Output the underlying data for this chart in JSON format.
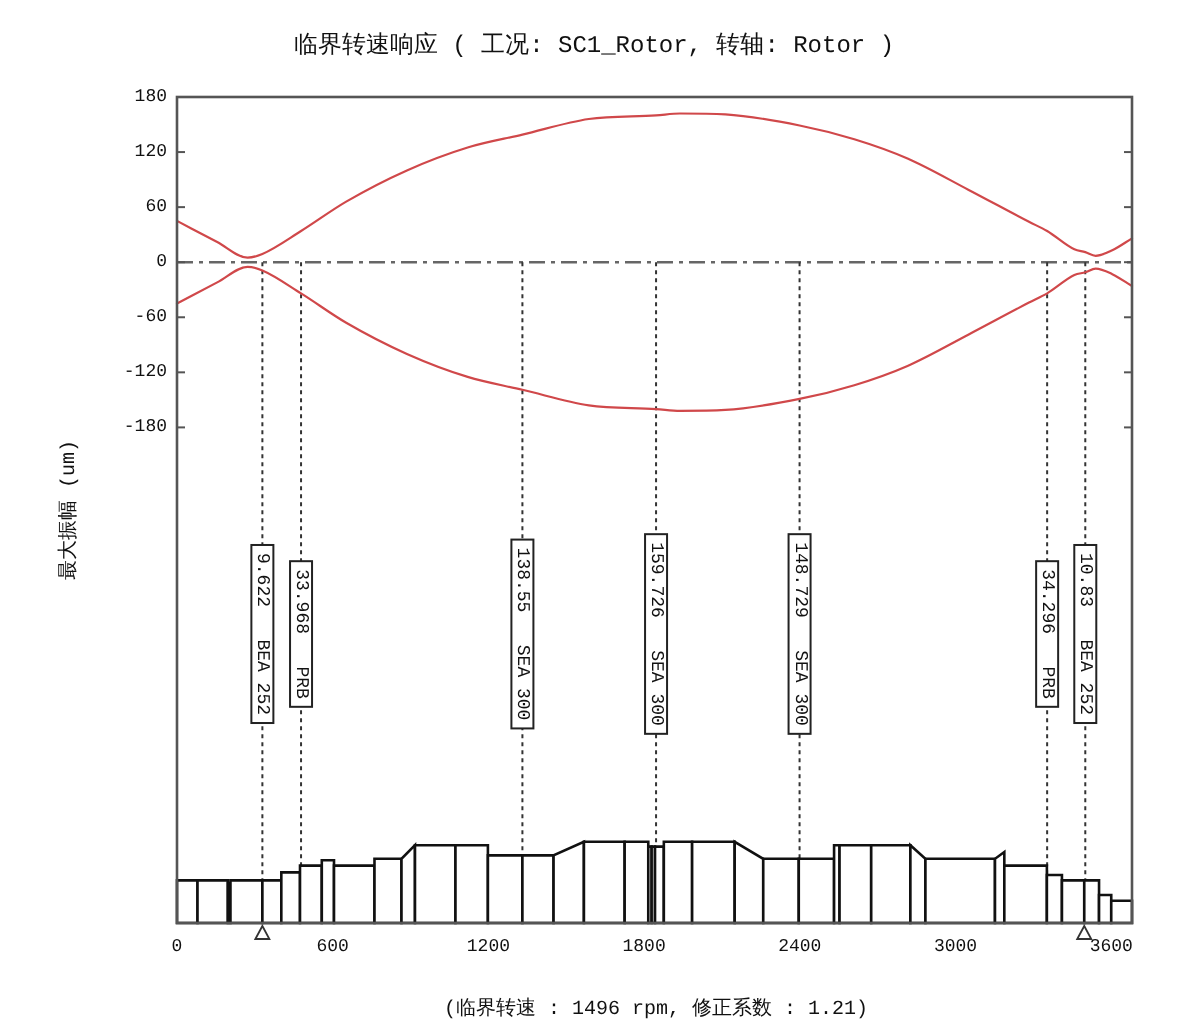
{
  "chart_data": {
    "type": "line",
    "title": "临界转速响应 ( 工况: SC1_Rotor, 转轴: Rotor )",
    "ylabel": "最大振幅 (um)",
    "annotations": [
      "(临界转速 : 1496 rpm, 修正系数 : 1.21)"
    ],
    "xlim": [
      0,
      3680
    ],
    "xticks": [
      0,
      600,
      1200,
      1800,
      2400,
      3000,
      3600
    ],
    "ylim": [
      -720,
      180
    ],
    "yticks": [
      180,
      120,
      60,
      0,
      -60,
      -120,
      -180
    ],
    "series": [
      {
        "color": "#d0484a",
        "x": [
          0,
          155,
          272,
          329,
          478,
          652,
          886,
          1120,
          1331,
          1587,
          1846,
          1938,
          2113,
          2399,
          2610,
          2815,
          3049,
          3283,
          3353,
          3458,
          3500,
          3540,
          3604,
          3680
        ],
        "values": [
          45,
          22,
          5,
          9,
          34,
          66,
          100,
          125,
          139,
          156,
          160,
          162,
          161,
          149,
          134,
          113,
          79,
          44,
          34,
          14,
          11,
          7,
          13,
          26
        ]
      },
      {
        "color": "#d0484a",
        "x": [
          0,
          155,
          272,
          329,
          478,
          652,
          886,
          1120,
          1331,
          1587,
          1846,
          1938,
          2113,
          2399,
          2610,
          2815,
          3049,
          3283,
          3353,
          3458,
          3500,
          3540,
          3604,
          3680
        ],
        "values": [
          -45,
          -22,
          -5,
          -9,
          -34,
          -66,
          -100,
          -125,
          -139,
          -156,
          -160,
          -162,
          -161,
          -149,
          -134,
          -113,
          -79,
          -44,
          -34,
          -14,
          -11,
          -7,
          -13,
          -26
        ]
      }
    ],
    "ref_lines": [
      {
        "axis": "y",
        "value": 0,
        "line_style": "dashed",
        "color": "#666666"
      },
      {
        "axis": "x",
        "value": 329,
        "label": "9.622   BEA 252",
        "line_style": "dotted",
        "color": "#333333"
      },
      {
        "axis": "x",
        "value": 478,
        "label": "33.968   PRB",
        "line_style": "dotted",
        "color": "#333333"
      },
      {
        "axis": "x",
        "value": 1331,
        "label": "138.55   SEA 300",
        "line_style": "dotted",
        "color": "#333333"
      },
      {
        "axis": "x",
        "value": 1846,
        "label": "159.726   SEA 300",
        "line_style": "dotted",
        "color": "#333333"
      },
      {
        "axis": "x",
        "value": 2399,
        "label": "148.729   SEA 300",
        "line_style": "dotted",
        "color": "#333333"
      },
      {
        "axis": "x",
        "value": 3353,
        "label": "34.296   PRB",
        "line_style": "dotted",
        "color": "#333333"
      },
      {
        "axis": "x",
        "value": 3500,
        "label": "10.83   BEA 252",
        "line_style": "dotted",
        "color": "#333333"
      }
    ]
  }
}
